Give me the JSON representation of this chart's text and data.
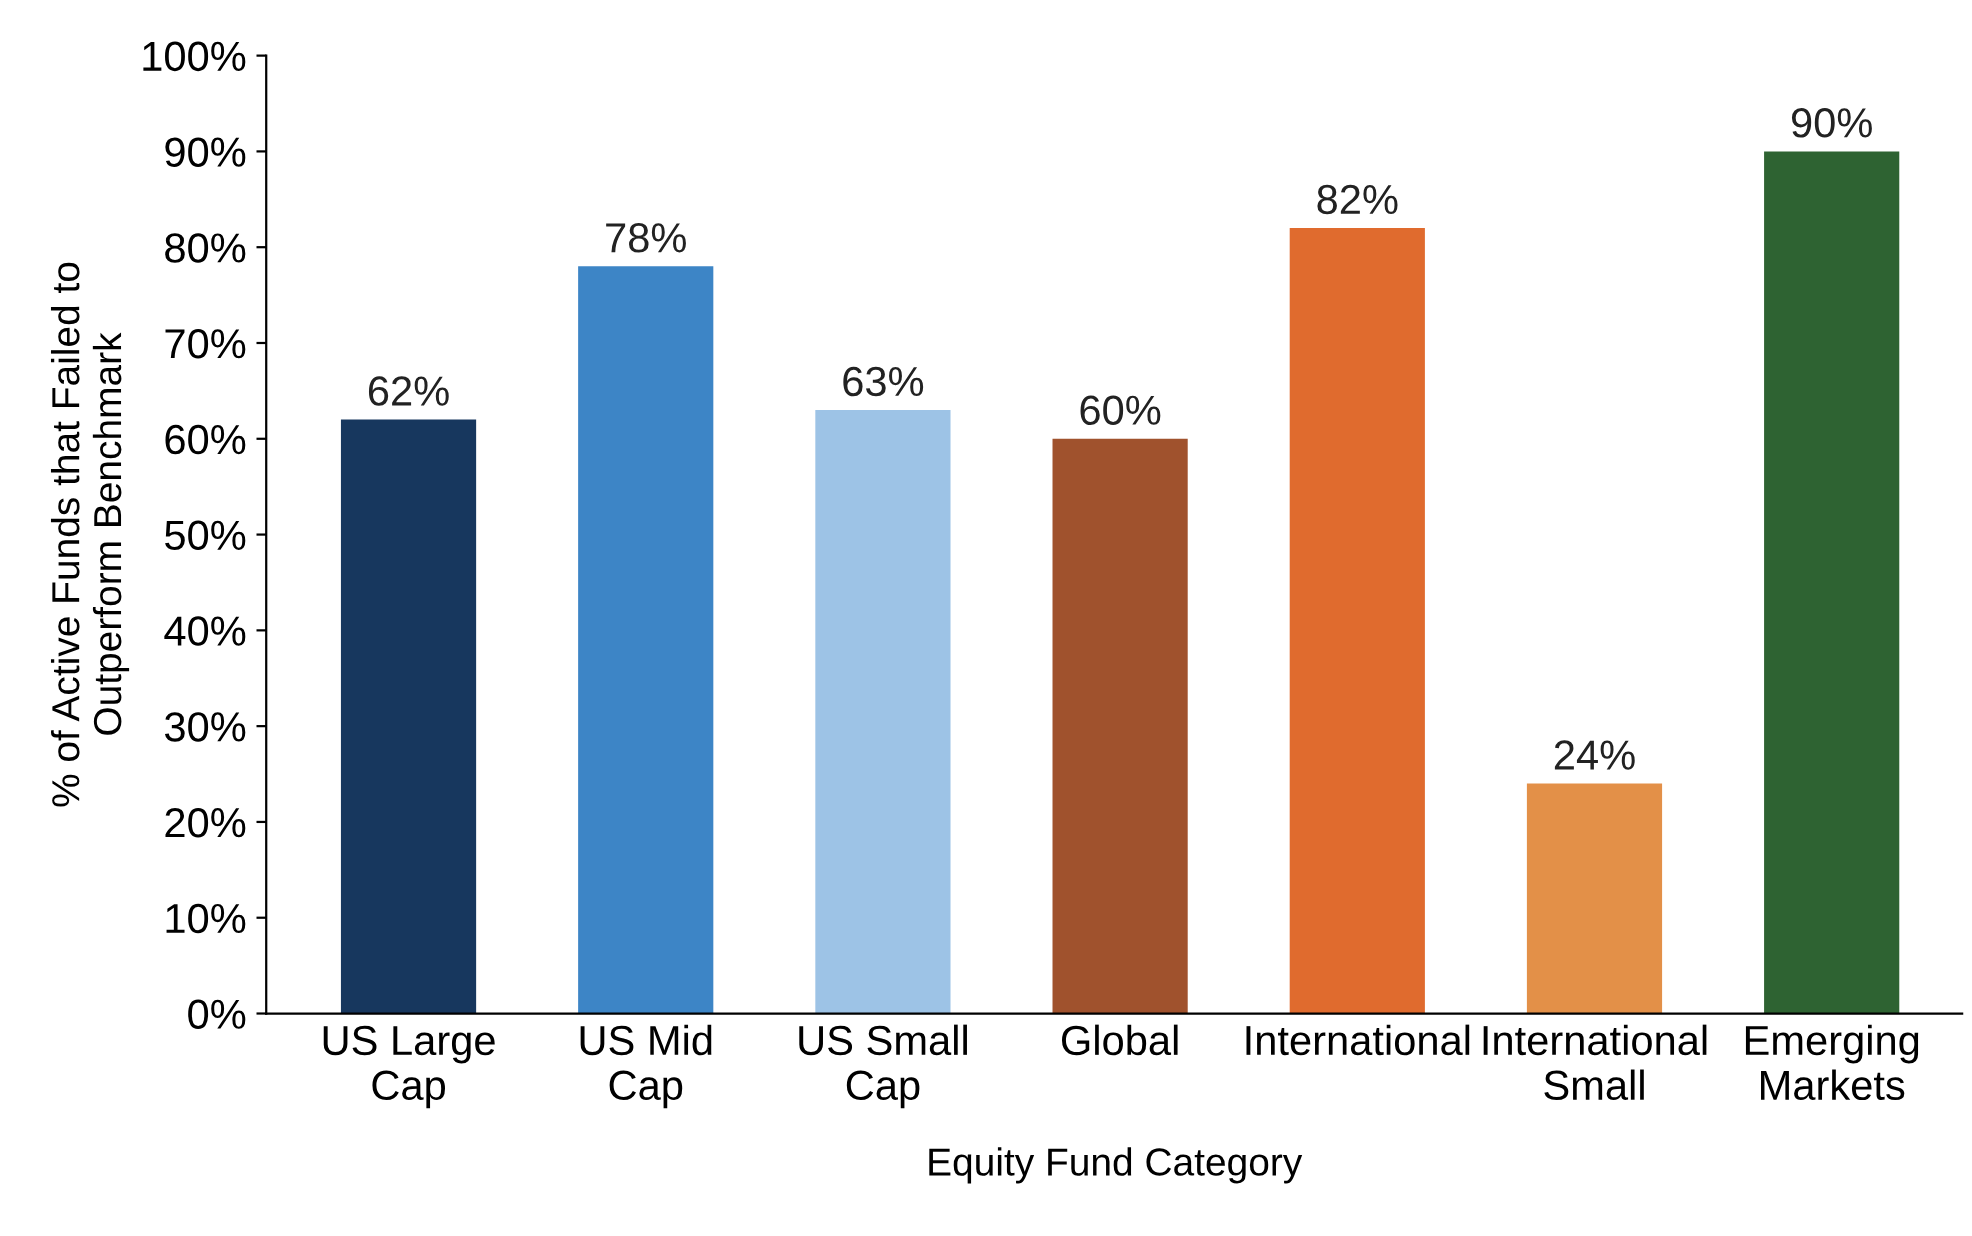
{
  "chart_data": {
    "type": "bar",
    "categories": [
      "US Large\nCap",
      "US Mid\nCap",
      "US Small\nCap",
      "Global",
      "International",
      "International\nSmall",
      "Emerging\nMarkets"
    ],
    "values": [
      62,
      78,
      63,
      60,
      82,
      24,
      90
    ],
    "colors": [
      "#17375e",
      "#3d85c6",
      "#9dc3e6",
      "#a0522d",
      "#e06b2e",
      "#e39048",
      "#2e6332"
    ],
    "value_labels": [
      "62%",
      "78%",
      "63%",
      "60%",
      "82%",
      "24%",
      "90%"
    ],
    "xlabel": "Equity Fund Category",
    "ylabel": "% of Active Funds that Failed to\nOutperform Benchmark",
    "ylim": [
      0,
      100
    ],
    "yticks": [
      {
        "value": 0,
        "label": "0%"
      },
      {
        "value": 10,
        "label": "10%"
      },
      {
        "value": 20,
        "label": "20%"
      },
      {
        "value": 30,
        "label": "30%"
      },
      {
        "value": 40,
        "label": "40%"
      },
      {
        "value": 50,
        "label": "50%"
      },
      {
        "value": 60,
        "label": "60%"
      },
      {
        "value": 70,
        "label": "70%"
      },
      {
        "value": 80,
        "label": "80%"
      },
      {
        "value": 90,
        "label": "90%"
      },
      {
        "value": 100,
        "label": "100%"
      }
    ],
    "grid": false,
    "legend": false
  }
}
